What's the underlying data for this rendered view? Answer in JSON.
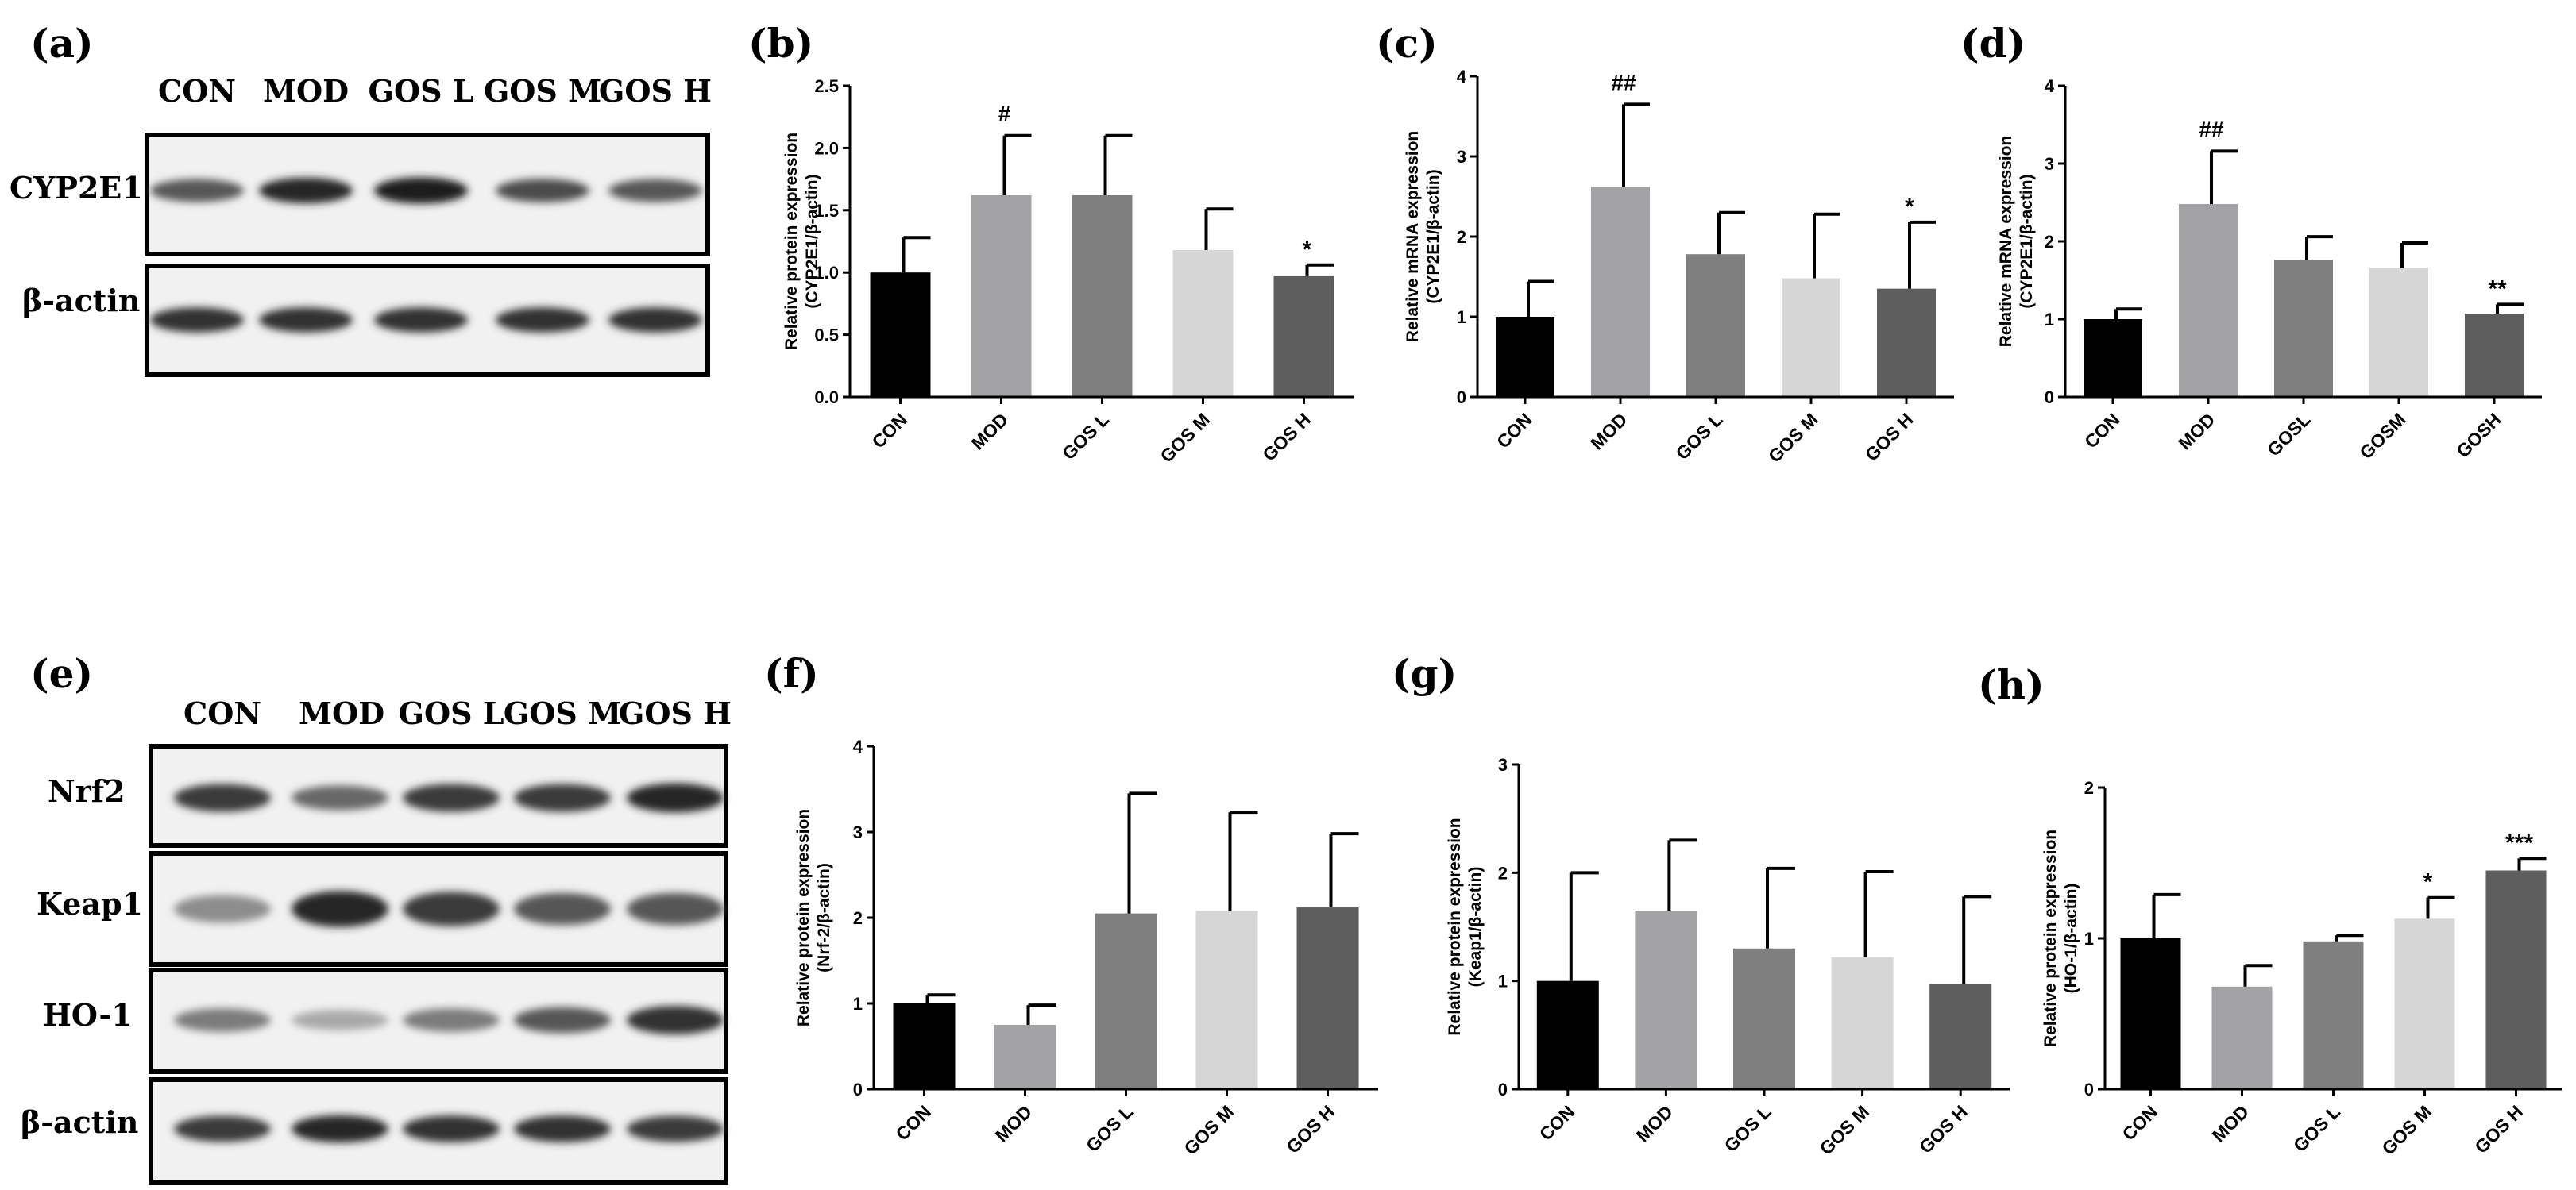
{
  "blots": [
    {
      "panel_label": "(a)",
      "lanes": [
        "CON",
        "MOD",
        "GOS L",
        "GOS M",
        "GOS H"
      ],
      "rows": [
        {
          "label": "CYP2E1",
          "intensity": [
            0.7,
            0.95,
            1.0,
            0.75,
            0.7
          ]
        },
        {
          "label": "β-actin",
          "intensity": [
            0.9,
            0.9,
            0.9,
            0.9,
            0.9
          ]
        }
      ]
    },
    {
      "panel_label": "(e)",
      "lanes": [
        "CON",
        "MOD",
        "GOS L",
        "GOS M",
        "GOS H"
      ],
      "rows": [
        {
          "label": "Nrf2",
          "intensity": [
            0.85,
            0.6,
            0.85,
            0.85,
            0.95
          ]
        },
        {
          "label": "Keap1",
          "intensity": [
            0.4,
            0.95,
            0.85,
            0.7,
            0.7
          ]
        },
        {
          "label": "HO-1",
          "intensity": [
            0.5,
            0.25,
            0.5,
            0.7,
            0.9
          ]
        },
        {
          "label": "β-actin",
          "intensity": [
            0.85,
            0.95,
            0.9,
            0.9,
            0.85
          ]
        }
      ]
    }
  ],
  "chart_data": [
    {
      "panel_label": "(b)",
      "type": "bar",
      "ylabel": [
        "Relative protein expression",
        "(CYP2E1/β-actin)"
      ],
      "categories": [
        "CON",
        "MOD",
        "GOS L",
        "GOS M",
        "GOS H"
      ],
      "values": [
        1.0,
        1.62,
        1.62,
        1.18,
        0.97
      ],
      "errors": [
        0.28,
        0.48,
        0.48,
        0.33,
        0.09
      ],
      "annotations": [
        "",
        "#",
        "",
        "",
        "*"
      ],
      "colors": [
        "#000000",
        "#a3a3a5",
        "#7f7f7f",
        "#d6d6d6",
        "#5e5e5e"
      ],
      "ylim": [
        0,
        2.5
      ],
      "yticks": [
        "0.0",
        "0.5",
        "1.0",
        "1.5",
        "2.0",
        "2.5"
      ]
    },
    {
      "panel_label": "(c)",
      "type": "bar",
      "ylabel": [
        "Relative mRNA expression",
        "(CYP2E1/β-actin)"
      ],
      "categories": [
        "CON",
        "MOD",
        "GOS L",
        "GOS M",
        "GOS H"
      ],
      "values": [
        1.0,
        2.62,
        1.78,
        1.48,
        1.35
      ],
      "errors": [
        0.44,
        1.03,
        0.52,
        0.8,
        0.83
      ],
      "annotations": [
        "",
        "##",
        "",
        "",
        "*"
      ],
      "colors": [
        "#000000",
        "#a3a3a5",
        "#7f7f7f",
        "#d6d6d6",
        "#5e5e5e"
      ],
      "ylim": [
        0,
        4
      ],
      "yticks": [
        "0",
        "1",
        "2",
        "3",
        "4"
      ]
    },
    {
      "panel_label": "(d)",
      "type": "bar",
      "ylabel": [
        "Relative mRNA expression",
        "(CYP2E1/β-actin)"
      ],
      "categories": [
        "CON",
        "MOD",
        "GOSL",
        "GOSM",
        "GOSH"
      ],
      "values": [
        1.0,
        2.48,
        1.76,
        1.66,
        1.07
      ],
      "errors": [
        0.13,
        0.68,
        0.3,
        0.32,
        0.12
      ],
      "annotations": [
        "",
        "##",
        "",
        "",
        "**"
      ],
      "colors": [
        "#000000",
        "#a3a3a5",
        "#7f7f7f",
        "#d6d6d6",
        "#5e5e5e"
      ],
      "ylim": [
        0,
        4
      ],
      "yticks": [
        "0",
        "1",
        "2",
        "3",
        "4"
      ]
    },
    {
      "panel_label": "(f)",
      "type": "bar",
      "ylabel": [
        "Relative protein expression",
        "(Nrf-2/β-actin)"
      ],
      "categories": [
        "CON",
        "MOD",
        "GOS L",
        "GOS M",
        "GOS H"
      ],
      "values": [
        1.0,
        0.75,
        2.05,
        2.08,
        2.12
      ],
      "errors": [
        0.1,
        0.23,
        1.4,
        1.15,
        0.86
      ],
      "annotations": [
        "",
        "",
        "",
        "",
        ""
      ],
      "colors": [
        "#000000",
        "#a3a3a5",
        "#7f7f7f",
        "#d6d6d6",
        "#5e5e5e"
      ],
      "ylim": [
        0,
        4
      ],
      "yticks": [
        "0",
        "1",
        "2",
        "3",
        "4"
      ]
    },
    {
      "panel_label": "(g)",
      "type": "bar",
      "ylabel": [
        "Relative protein expression",
        "(Keap1/β-actin)"
      ],
      "categories": [
        "CON",
        "MOD",
        "GOS L",
        "GOS M",
        "GOS H"
      ],
      "values": [
        1.0,
        1.65,
        1.3,
        1.22,
        0.97
      ],
      "errors": [
        1.0,
        0.65,
        0.74,
        0.79,
        0.81
      ],
      "annotations": [
        "",
        "",
        "",
        "",
        ""
      ],
      "colors": [
        "#000000",
        "#a3a3a5",
        "#7f7f7f",
        "#d6d6d6",
        "#5e5e5e"
      ],
      "ylim": [
        0,
        3
      ],
      "yticks": [
        "0",
        "1",
        "2",
        "3"
      ]
    },
    {
      "panel_label": "(h)",
      "type": "bar",
      "ylabel": [
        "Relative protein expression",
        "(HO-1/β-actin)"
      ],
      "categories": [
        "CON",
        "MOD",
        "GOS L",
        "GOS M",
        "GOS H"
      ],
      "values": [
        1.0,
        0.68,
        0.98,
        1.13,
        1.45
      ],
      "errors": [
        0.29,
        0.14,
        0.04,
        0.14,
        0.08
      ],
      "annotations": [
        "",
        "",
        "",
        "*",
        "***"
      ],
      "colors": [
        "#000000",
        "#a3a3a5",
        "#7f7f7f",
        "#d6d6d6",
        "#5e5e5e"
      ],
      "ylim": [
        0,
        2
      ],
      "yticks": [
        "0",
        "1",
        "2"
      ]
    }
  ]
}
